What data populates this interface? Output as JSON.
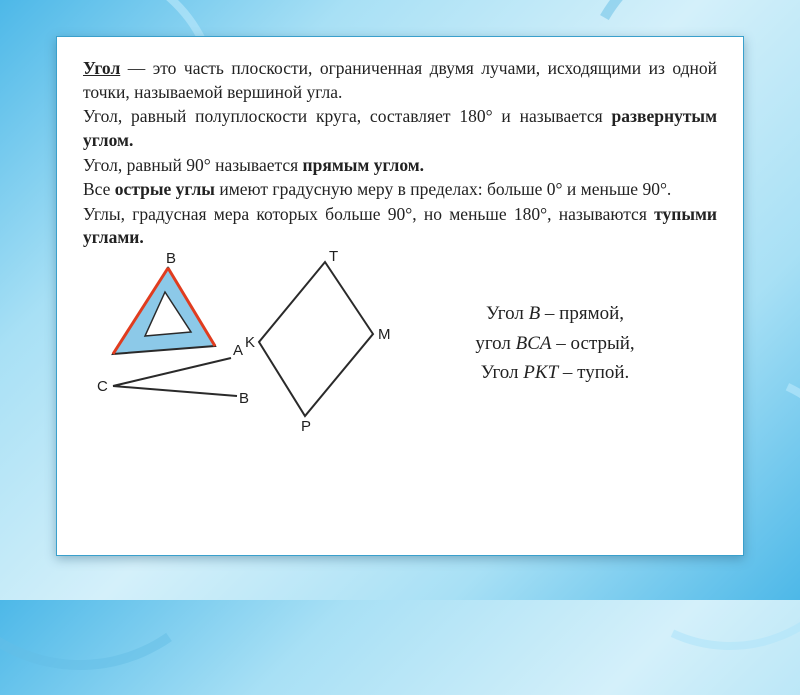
{
  "text": {
    "p1a": "Угол",
    "p1b": " — это часть плоскости, ограниченная двумя лучами, исходящими из одной точки, называемой вершиной угла.",
    "p2a": "Угол, равный полуплоскости круга, составляет 180° и называется ",
    "p2b": "развернутым углом.",
    "p3a": "Угол, равный 90° называется ",
    "p3b": "прямым углом.",
    "p4a": "Все ",
    "p4b": "острые углы",
    "p4c": " имеют градусную меру в пределах: больше 0° и меньше 90°.",
    "p5a": "Углы, градусная мера которых больше 90°, но меньше 180°, называются ",
    "p5b": "тупыми углами."
  },
  "summary": {
    "l1a": "Угол ",
    "l1b": "B",
    "l1c": " – прямой,",
    "l2a": "угол ",
    "l2b": "BCA",
    "l2c": " – острый,",
    "l3a": "Угол ",
    "l3b": "PKT",
    "l3c": " – тупой."
  },
  "fig": {
    "labels": {
      "B1": "B",
      "C": "C",
      "A": "A",
      "B2": "B",
      "T": "T",
      "K": "K",
      "M": "M",
      "P": "P"
    },
    "colors": {
      "stroke": "#2a2a2a",
      "triangle_fill": "#8cc9e8",
      "triangle_edge": "#e03c1f",
      "rhombus_stroke": "#2a2a2a"
    },
    "triangle_tool": {
      "outer": "85,12 30,98 132,90",
      "inner": "82,36 62,80 108,76"
    },
    "acute": {
      "apexC": "30,130",
      "ptA": "148,102",
      "ptB": "154,140"
    },
    "rhombus": {
      "T": "242,6",
      "M": "290,78",
      "P": "222,160",
      "K": "176,86"
    }
  }
}
